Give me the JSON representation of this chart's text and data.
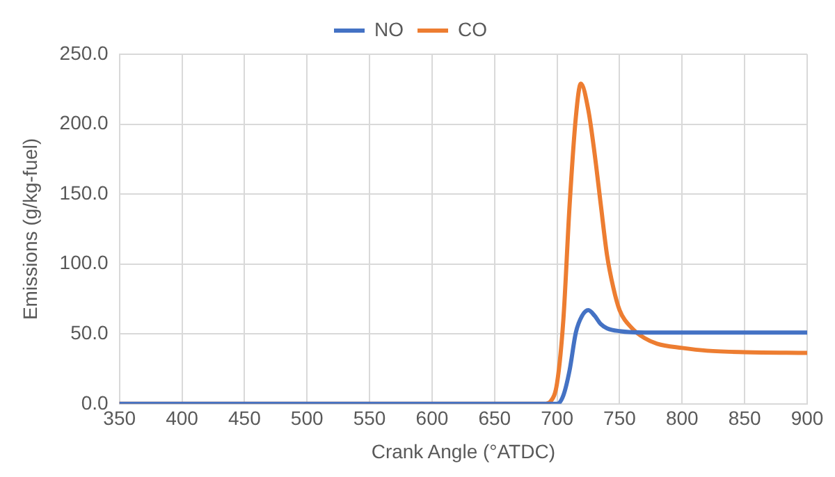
{
  "chart_data": {
    "type": "line",
    "xlabel": "Crank Angle (°ATDC)",
    "ylabel": "Emissions (g/kg-fuel)",
    "xlim": [
      350,
      900
    ],
    "xticks": [
      350,
      400,
      450,
      500,
      550,
      600,
      650,
      700,
      750,
      800,
      850,
      900
    ],
    "ylim": [
      0,
      250
    ],
    "yticks": [
      {
        "value": 0,
        "label": "0.0"
      },
      {
        "value": 50,
        "label": "50.0"
      },
      {
        "value": 100,
        "label": "100.0"
      },
      {
        "value": 150,
        "label": "150.0"
      },
      {
        "value": 200,
        "label": "200.0"
      },
      {
        "value": 250,
        "label": "250.0"
      }
    ],
    "grid": true,
    "legend": "top",
    "marker": "none",
    "line_style": "solid",
    "series": [
      {
        "name": "NO",
        "color": "#4472c4",
        "x": [
          350,
          700,
          705,
          710,
          715,
          720,
          725,
          730,
          735,
          740,
          750,
          770,
          800,
          850,
          900
        ],
        "values": [
          0,
          0,
          6,
          24,
          51,
          63,
          67,
          63,
          57,
          54,
          52,
          51,
          51,
          51,
          51
        ]
      },
      {
        "name": "CO",
        "color": "#ed7d31",
        "x": [
          350,
          690,
          695,
          700,
          705,
          710,
          715,
          719,
          725,
          730,
          735,
          740,
          745,
          750,
          760,
          770,
          780,
          800,
          820,
          850,
          900
        ],
        "values": [
          0,
          0,
          2,
          15,
          60,
          142,
          205,
          229,
          210,
          179,
          142,
          106,
          83,
          67,
          54,
          47,
          43,
          40,
          38,
          37,
          36.5
        ]
      }
    ]
  }
}
